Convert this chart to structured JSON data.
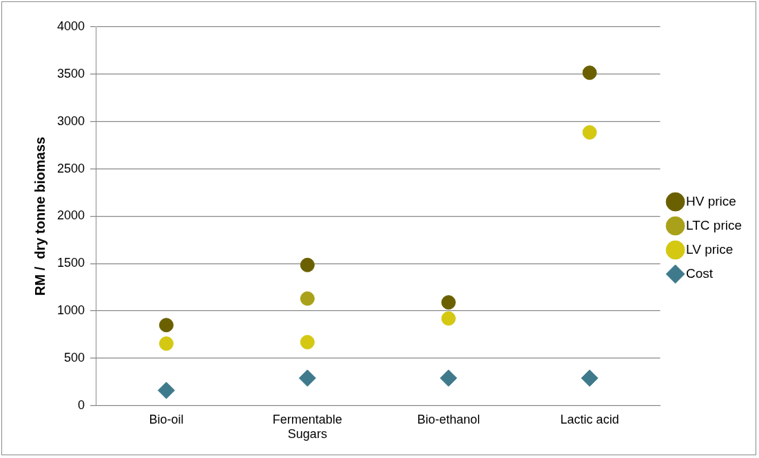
{
  "chart_data": {
    "type": "scatter",
    "ylabel": "RM /  dry tonne biomass",
    "categories": [
      "Bio-oil",
      "Fermentable Sugars",
      "Bio-ethanol",
      "Lactic acid"
    ],
    "series": [
      {
        "name": "HV price",
        "color": "#6b6000",
        "marker": "circle",
        "values": [
          850,
          1485,
          1090,
          3515
        ]
      },
      {
        "name": "LTC price",
        "color": "#a9a11a",
        "marker": "circle",
        "values": [
          null,
          1130,
          null,
          null
        ]
      },
      {
        "name": "LV price",
        "color": "#d4c813",
        "marker": "circle",
        "values": [
          655,
          670,
          920,
          2885
        ]
      },
      {
        "name": "Cost",
        "color": "#3f7a8c",
        "marker": "diamond",
        "values": [
          160,
          290,
          290,
          290
        ]
      }
    ],
    "ylim": [
      0,
      4000
    ],
    "yticks": [
      0,
      500,
      1000,
      1500,
      2000,
      2500,
      3000,
      3500,
      4000
    ],
    "grid": "y",
    "legend": "right"
  }
}
